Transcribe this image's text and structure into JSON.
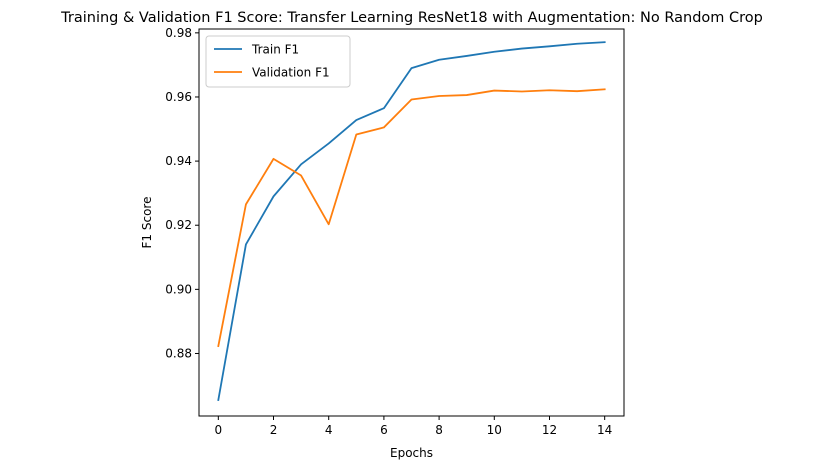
{
  "chart_data": {
    "type": "line",
    "title": "Training & Validation F1 Score: Transfer Learning ResNet18 with Augmentation: No Random Crop",
    "xlabel": "Epochs",
    "ylabel": "F1 Score",
    "xlim": [
      -0.7,
      14.7
    ],
    "ylim": [
      0.8605,
      0.9812
    ],
    "xticks": [
      0,
      2,
      4,
      6,
      8,
      10,
      12,
      14
    ],
    "xtick_labels": [
      "0",
      "2",
      "4",
      "6",
      "8",
      "10",
      "12",
      "14"
    ],
    "yticks": [
      0.88,
      0.9,
      0.92,
      0.94,
      0.96,
      0.98
    ],
    "ytick_labels": [
      "0.88",
      "0.90",
      "0.92",
      "0.94",
      "0.96",
      "0.98"
    ],
    "x": [
      0,
      1,
      2,
      3,
      4,
      5,
      6,
      7,
      8,
      9,
      10,
      11,
      12,
      13,
      14
    ],
    "series": [
      {
        "name": "Train F1",
        "color": "#1f77b4",
        "values": [
          0.8655,
          0.914,
          0.929,
          0.939,
          0.9455,
          0.9528,
          0.9565,
          0.969,
          0.9716,
          0.9728,
          0.9741,
          0.9751,
          0.9758,
          0.9766,
          0.9771
        ]
      },
      {
        "name": "Validation F1",
        "color": "#ff7f0e",
        "values": [
          0.8823,
          0.9265,
          0.9407,
          0.9355,
          0.9203,
          0.9483,
          0.9505,
          0.9592,
          0.9603,
          0.9606,
          0.962,
          0.9617,
          0.9621,
          0.9618,
          0.9624
        ]
      }
    ],
    "grid": false,
    "legend_position": "upper-left"
  }
}
